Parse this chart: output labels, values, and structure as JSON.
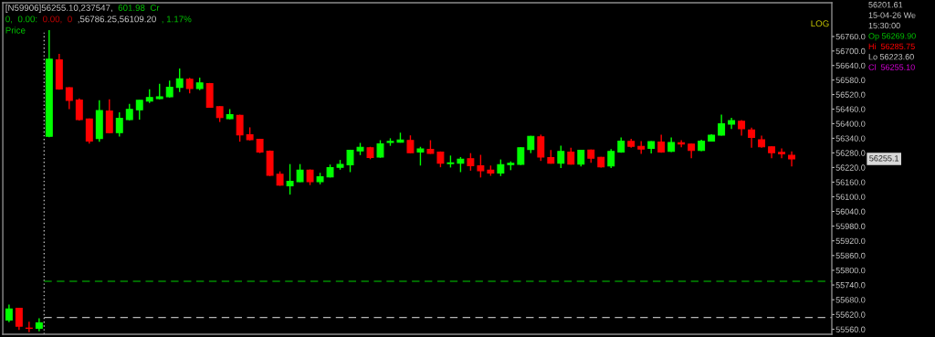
{
  "chart_data": {
    "type": "candlestick",
    "categories": [
      null,
      null,
      null,
      null,
      null,
      null,
      null,
      null,
      null,
      null,
      null,
      null,
      null,
      null,
      null,
      null,
      null,
      null,
      null,
      null,
      null,
      null,
      null,
      null,
      null,
      null,
      null,
      null,
      null,
      null,
      null,
      null,
      null,
      null,
      null,
      null,
      null,
      null,
      null,
      null,
      null,
      null,
      null,
      null,
      null,
      null,
      null,
      null,
      null,
      null,
      null,
      null,
      null,
      null,
      null,
      null,
      null,
      null,
      null,
      null,
      null,
      null,
      null,
      null,
      null,
      null,
      null,
      null,
      null,
      null,
      null,
      null,
      null,
      null,
      null,
      null,
      null,
      null,
      null
    ],
    "ohlc": [
      [
        55598,
        55660,
        55589,
        55643
      ],
      [
        55645,
        55645,
        55558,
        55573
      ],
      [
        55565,
        55591,
        55548,
        55564
      ],
      [
        55564,
        55605,
        55552,
        55586
      ],
      [
        56348,
        56786,
        56344,
        56666
      ],
      [
        56663,
        56688,
        56540,
        56543
      ],
      [
        56548,
        56550,
        56460,
        56496
      ],
      [
        56497,
        56504,
        56413,
        56417
      ],
      [
        56419,
        56421,
        56318,
        56329
      ],
      [
        56339,
        56497,
        56326,
        56454
      ],
      [
        56452,
        56500,
        56360,
        56363
      ],
      [
        56363,
        56447,
        56347,
        56422
      ],
      [
        56417,
        56482,
        56414,
        56459
      ],
      [
        56457,
        56498,
        56417,
        56496
      ],
      [
        56493,
        56542,
        56485,
        56508
      ],
      [
        56503,
        56564,
        56500,
        56511
      ],
      [
        56511,
        56578,
        56508,
        56550
      ],
      [
        56550,
        56628,
        56531,
        56585
      ],
      [
        56583,
        56589,
        56525,
        56545
      ],
      [
        56545,
        56590,
        56538,
        56568
      ],
      [
        56565,
        56568,
        56466,
        56468
      ],
      [
        56470,
        56472,
        56407,
        56425
      ],
      [
        56421,
        56460,
        56418,
        56437
      ],
      [
        56434,
        56437,
        56326,
        56354
      ],
      [
        56354,
        56385,
        56331,
        56334
      ],
      [
        56336,
        56338,
        56279,
        56284
      ],
      [
        56287,
        56290,
        56185,
        56188
      ],
      [
        56192,
        56204,
        56145,
        56148
      ],
      [
        56145,
        56234,
        56109,
        56163
      ],
      [
        56162,
        56234,
        56160,
        56209
      ],
      [
        56209,
        56212,
        56148,
        56162
      ],
      [
        56162,
        56198,
        56151,
        56182
      ],
      [
        56181,
        56232,
        56179,
        56219
      ],
      [
        56221,
        56251,
        56211,
        56233
      ],
      [
        56231,
        56293,
        56201,
        56291
      ],
      [
        56288,
        56321,
        56271,
        56303
      ],
      [
        56301,
        56305,
        56254,
        56261
      ],
      [
        56263,
        56332,
        56260,
        56317
      ],
      [
        56323,
        56340,
        56309,
        56327
      ],
      [
        56324,
        56363,
        56322,
        56333
      ],
      [
        56331,
        56352,
        56279,
        56281
      ],
      [
        56284,
        56305,
        56228,
        56296
      ],
      [
        56294,
        56332,
        56276,
        56278
      ],
      [
        56283,
        56286,
        56221,
        56238
      ],
      [
        56236,
        56269,
        56220,
        56239
      ],
      [
        56238,
        56263,
        56201,
        56254
      ],
      [
        56256,
        56279,
        56207,
        56227
      ],
      [
        56227,
        56272,
        56179,
        56207
      ],
      [
        56209,
        56228,
        56186,
        56197
      ],
      [
        56197,
        56253,
        56185,
        56232
      ],
      [
        56232,
        56245,
        56209,
        56237
      ],
      [
        56233,
        56303,
        56230,
        56301
      ],
      [
        56294,
        56350,
        56279,
        56348
      ],
      [
        56346,
        56355,
        56247,
        56263
      ],
      [
        56261,
        56292,
        56236,
        56238
      ],
      [
        56238,
        56310,
        56218,
        56286
      ],
      [
        56283,
        56301,
        56232,
        56234
      ],
      [
        56234,
        56293,
        56224,
        56291
      ],
      [
        56292,
        56294,
        56239,
        56258
      ],
      [
        56262,
        56264,
        56220,
        56223
      ],
      [
        56226,
        56296,
        56218,
        56286
      ],
      [
        56284,
        56343,
        56281,
        56328
      ],
      [
        56327,
        56338,
        56301,
        56307
      ],
      [
        56307,
        56328,
        56276,
        56296
      ],
      [
        56299,
        56328,
        56278,
        56326
      ],
      [
        56324,
        56355,
        56281,
        56284
      ],
      [
        56286,
        56343,
        56283,
        56323
      ],
      [
        56322,
        56332,
        56303,
        56316
      ],
      [
        56316,
        56318,
        56258,
        56290
      ],
      [
        56290,
        56334,
        56287,
        56328
      ],
      [
        56329,
        56357,
        56327,
        56353
      ],
      [
        56353,
        56437,
        56351,
        56400
      ],
      [
        56398,
        56424,
        56378,
        56413
      ],
      [
        56410,
        56415,
        56351,
        56379
      ],
      [
        56374,
        56384,
        56301,
        56344
      ],
      [
        56334,
        56351,
        56301,
        56305
      ],
      [
        56305,
        56307,
        56258,
        56281
      ],
      [
        56282,
        56298,
        56258,
        56276
      ],
      [
        56270,
        56286,
        56224,
        56255
      ]
    ],
    "colors": [
      "#00ff00",
      "#ff0000",
      "#ff0000",
      "#00ff00",
      "#00ff00",
      "#ff0000",
      "#ff0000",
      "#ff0000",
      "#ff0000",
      "#00ff00",
      "#ff0000",
      "#00ff00",
      "#00ff00",
      "#00ff00",
      "#00ff00",
      "#00ff00",
      "#00ff00",
      "#00ff00",
      "#ff0000",
      "#00ff00",
      "#ff0000",
      "#ff0000",
      "#00ff00",
      "#ff0000",
      "#ff0000",
      "#ff0000",
      "#ff0000",
      "#ff0000",
      "#00ff00",
      "#00ff00",
      "#ff0000",
      "#00ff00",
      "#00ff00",
      "#00ff00",
      "#00ff00",
      "#00ff00",
      "#ff0000",
      "#00ff00",
      "#00ff00",
      "#00ff00",
      "#ff0000",
      "#00ff00",
      "#ff0000",
      "#ff0000",
      "#00ff00",
      "#00ff00",
      "#ff0000",
      "#ff0000",
      "#ff0000",
      "#00ff00",
      "#00ff00",
      "#00ff00",
      "#00ff00",
      "#ff0000",
      "#ff0000",
      "#00ff00",
      "#ff0000",
      "#00ff00",
      "#ff0000",
      "#ff0000",
      "#00ff00",
      "#00ff00",
      "#ff0000",
      "#ff0000",
      "#00ff00",
      "#ff0000",
      "#00ff00",
      "#ff0000",
      "#ff0000",
      "#00ff00",
      "#00ff00",
      "#00ff00",
      "#00ff00",
      "#ff0000",
      "#ff0000",
      "#ff0000",
      "#ff0000",
      "#ff0000",
      "#ff0000"
    ],
    "log": true,
    "ylim": [
      55540,
      56900
    ],
    "yticks": [
      {
        "value": 55560,
        "label": "55560.0"
      },
      {
        "value": 55620,
        "label": "55620.0"
      },
      {
        "value": 55680,
        "label": "55680.0"
      },
      {
        "value": 55740,
        "label": "55740.0"
      },
      {
        "value": 55800,
        "label": "55800.0"
      },
      {
        "value": 55860,
        "label": "55860.0"
      },
      {
        "value": 55920,
        "label": "55920.0"
      },
      {
        "value": 55980,
        "label": "55980.0"
      },
      {
        "value": 56040,
        "label": "56040.0"
      },
      {
        "value": 56100,
        "label": "56100.0"
      },
      {
        "value": 56160,
        "label": "56160.0"
      },
      {
        "value": 56220,
        "label": "56220.0"
      },
      {
        "value": 56280,
        "label": "56280.0"
      },
      {
        "value": 56340,
        "label": "56340.0"
      },
      {
        "value": 56400,
        "label": "56400.0"
      },
      {
        "value": 56460,
        "label": "56460.0"
      },
      {
        "value": 56520,
        "label": "56520.0"
      },
      {
        "value": 56580,
        "label": "56580.0"
      },
      {
        "value": 56640,
        "label": "56640.0"
      },
      {
        "value": 56700,
        "label": "56700.0"
      },
      {
        "value": 56760,
        "label": "56760.0"
      }
    ],
    "tick_labels": "y",
    "ref_lines": [
      {
        "axis": "y",
        "value": 55755,
        "color": "#008a00",
        "line_style": "dashed"
      },
      {
        "axis": "y",
        "value": 55608,
        "color": "#b4b4b4",
        "line_style": "dashed"
      }
    ],
    "annotations": [
      "[N59906]56255.10,237547,",
      "601.98  Cr",
      "0,",
      "0.00:",
      "0.00,",
      "0",
      ",56786.25,56109.20",
      ", 1.17%",
      "Price",
      "LOG",
      "56201.61",
      "15-04-26 We",
      "15:30:00",
      "Op 56269.90",
      "Hi  56285.75",
      "Lo 56223.60",
      "Cl  56255.10",
      "56255.1"
    ]
  }
}
